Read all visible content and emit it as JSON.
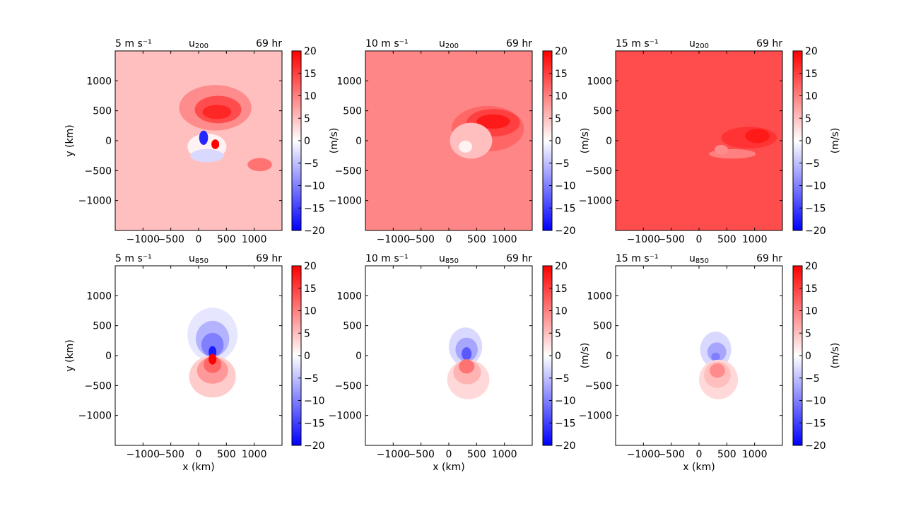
{
  "chart_data": [
    {
      "type": "heatmap",
      "title_left": "5 m s⁻¹",
      "title_center_base": "u",
      "title_center_sub": "200",
      "title_right": "69 hr",
      "xlabel": "",
      "ylabel": "y (km)",
      "colorbar_label": "(m/s)",
      "xticks": [
        "−1000",
        "−500",
        "0",
        "500",
        "1000"
      ],
      "yticks": [
        "−1000",
        "−500",
        "0",
        "500",
        "1000"
      ],
      "colorbar_ticks": [
        "−20",
        "−15",
        "−10",
        "−5",
        "0",
        "5",
        "10",
        "15",
        "20"
      ],
      "xlim": [
        -1500,
        1500
      ],
      "ylim": [
        -1500,
        1500
      ],
      "clim": [
        -20,
        20
      ],
      "background_value": 5
    },
    {
      "type": "heatmap",
      "title_left": "10 m s⁻¹",
      "title_center_base": "u",
      "title_center_sub": "200",
      "title_right": "69 hr",
      "xlabel": "",
      "ylabel": "",
      "colorbar_label": "(m/s)",
      "xticks": [
        "−1000",
        "−500",
        "0",
        "500",
        "1000"
      ],
      "yticks": [
        "−1000",
        "−500",
        "0",
        "500",
        "1000"
      ],
      "colorbar_ticks": [
        "−20",
        "−15",
        "−10",
        "−5",
        "0",
        "5",
        "10",
        "15",
        "20"
      ],
      "xlim": [
        -1500,
        1500
      ],
      "ylim": [
        -1500,
        1500
      ],
      "clim": [
        -20,
        20
      ],
      "background_value": 9.5
    },
    {
      "type": "heatmap",
      "title_left": "15 m s⁻¹",
      "title_center_base": "u",
      "title_center_sub": "200",
      "title_right": "69 hr",
      "xlabel": "",
      "ylabel": "",
      "colorbar_label": "(m/s)",
      "xticks": [
        "−1000",
        "−500",
        "0",
        "500",
        "1000"
      ],
      "yticks": [
        "−1000",
        "−500",
        "0",
        "500",
        "1000"
      ],
      "colorbar_ticks": [
        "−20",
        "−15",
        "−10",
        "−5",
        "0",
        "5",
        "10",
        "15",
        "20"
      ],
      "xlim": [
        -1500,
        1500
      ],
      "ylim": [
        -1500,
        1500
      ],
      "clim": [
        -20,
        20
      ],
      "background_value": 14
    },
    {
      "type": "heatmap",
      "title_left": "5 m s⁻¹",
      "title_center_base": "u",
      "title_center_sub": "850",
      "title_right": "69 hr",
      "xlabel": "x (km)",
      "ylabel": "y (km)",
      "colorbar_label": "",
      "xticks": [
        "−1000",
        "−500",
        "0",
        "500",
        "1000"
      ],
      "yticks": [
        "−1000",
        "−500",
        "0",
        "500",
        "1000"
      ],
      "colorbar_ticks": [
        "−20",
        "−15",
        "−10",
        "−5",
        "0",
        "5",
        "10",
        "15",
        "20"
      ],
      "xlim": [
        -1500,
        1500
      ],
      "ylim": [
        -1500,
        1500
      ],
      "clim": [
        -20,
        20
      ],
      "background_value": 0
    },
    {
      "type": "heatmap",
      "title_left": "10 m s⁻¹",
      "title_center_base": "u",
      "title_center_sub": "850",
      "title_right": "69 hr",
      "xlabel": "x (km)",
      "ylabel": "",
      "colorbar_label": "(m/s)",
      "xticks": [
        "−1000",
        "−500",
        "0",
        "500",
        "1000"
      ],
      "yticks": [
        "−1000",
        "−500",
        "0",
        "500",
        "1000"
      ],
      "colorbar_ticks": [
        "−20",
        "−15",
        "−10",
        "−5",
        "0",
        "5",
        "10",
        "15",
        "20"
      ],
      "xlim": [
        -1500,
        1500
      ],
      "ylim": [
        -1500,
        1500
      ],
      "clim": [
        -20,
        20
      ],
      "background_value": 0
    },
    {
      "type": "heatmap",
      "title_left": "15 m s⁻¹",
      "title_center_base": "u",
      "title_center_sub": "850",
      "title_right": "69 hr",
      "xlabel": "x (km)",
      "ylabel": "",
      "colorbar_label": "(m/s)",
      "xticks": [
        "−1000",
        "−500",
        "0",
        "500",
        "1000"
      ],
      "yticks": [
        "−1000",
        "−500",
        "0",
        "500",
        "1000"
      ],
      "colorbar_ticks": [
        "−20",
        "−15",
        "−10",
        "−5",
        "0",
        "5",
        "10",
        "15",
        "20"
      ],
      "xlim": [
        -1500,
        1500
      ],
      "ylim": [
        -1500,
        1500
      ],
      "clim": [
        -20,
        20
      ],
      "background_value": 0
    }
  ],
  "colors": {
    "colormap_low": "#0000ff",
    "colormap_mid": "#ffffff",
    "colormap_high": "#ff0000"
  }
}
